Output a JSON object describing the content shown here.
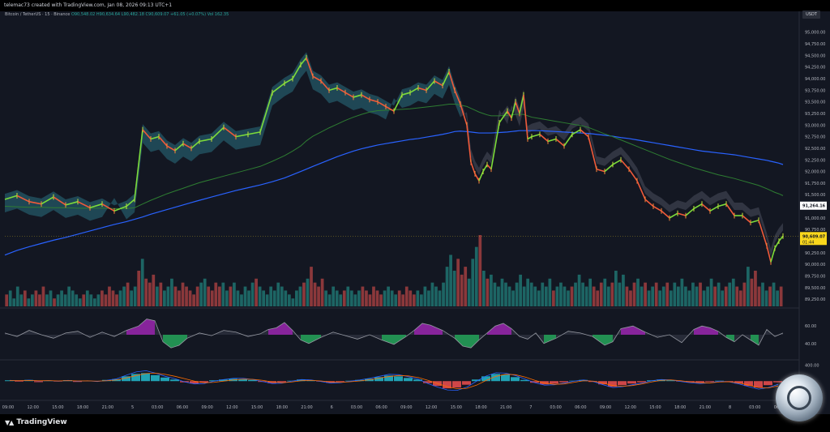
{
  "header": {
    "credit": "telemac73 created with TradingView.com, Jan 08, 2026 09:13 UTC+1"
  },
  "legend": {
    "symbol": "Bitcoin / TetherUS · 15 · Binance",
    "ohlc": "O90,548.02 H90,634.64 L90,482.18 C90,609.07 +61.05 (+0.07%)",
    "vol": "Vol 162.35"
  },
  "unit": "USDT",
  "branding": "TradingView",
  "colors": {
    "background": "#131722",
    "bull": "#26a69a",
    "bear": "#ef5350",
    "ma_slow": "#2962ff",
    "ma_mid": "#2e7d32",
    "cloud_up": "#2a6f80",
    "cloud_down": "#4a4e5c",
    "price_badge": "#f9d71c"
  },
  "chart_data": [
    {
      "type": "line",
      "panel": "price",
      "y_ticks": [
        "95,000.00",
        "94,750.00",
        "94,500.00",
        "94,250.00",
        "94,000.00",
        "93,750.00",
        "93,500.00",
        "93,250.00",
        "93,000.00",
        "92,750.00",
        "92,500.00",
        "92,250.00",
        "92,000.00",
        "91,750.00",
        "91,500.00",
        "91,250.00",
        "91,000.00",
        "90,750.00",
        "90,500.00",
        "90,250.00",
        "90,000.00",
        "89,750.00",
        "89,500.00",
        "89,250.00"
      ],
      "ylim": [
        89200,
        95100
      ],
      "x_ticks": [
        "09:00",
        "12:00",
        "15:00",
        "18:00",
        "21:00",
        "5",
        "03:00",
        "06:00",
        "09:00",
        "12:00",
        "15:00",
        "18:00",
        "21:00",
        "6",
        "03:00",
        "06:00",
        "09:00",
        "12:00",
        "15:00",
        "18:00",
        "21:00",
        "7",
        "03:00",
        "06:00",
        "09:00",
        "12:00",
        "15:00",
        "18:00",
        "21:00",
        "8",
        "03:00",
        "06:00"
      ],
      "price_labels": {
        "level": "91,264.16",
        "last": "90,609.07",
        "countdown": "01:44"
      },
      "price_x": [
        0,
        15,
        30,
        45,
        60,
        75,
        90,
        105,
        120,
        135,
        150,
        160,
        170,
        180,
        190,
        200,
        210,
        220,
        230,
        240,
        255,
        270,
        285,
        300,
        315,
        330,
        345,
        355,
        365,
        372,
        380,
        390,
        400,
        410,
        420,
        430,
        440,
        450,
        460,
        470,
        480,
        490,
        500,
        510,
        520,
        530,
        540,
        548,
        555,
        562,
        570,
        575,
        580,
        585,
        590,
        595,
        600,
        610,
        620,
        625,
        630,
        635,
        640,
        645,
        650,
        660,
        670,
        680,
        690,
        700,
        710,
        720,
        730,
        740,
        750,
        760,
        770,
        780,
        790,
        800,
        810,
        820,
        830,
        840,
        850,
        860,
        870,
        880,
        890,
        900,
        910,
        920,
        930,
        940,
        945,
        950,
        955,
        960
      ],
      "price_y": [
        91400,
        91480,
        91350,
        91300,
        91450,
        91280,
        91350,
        91220,
        91300,
        91150,
        91250,
        91400,
        92900,
        92700,
        92750,
        92550,
        92450,
        92600,
        92500,
        92650,
        92700,
        92950,
        92750,
        92800,
        92850,
        93700,
        93900,
        94000,
        94300,
        94450,
        94050,
        93950,
        93750,
        93800,
        93700,
        93600,
        93650,
        93550,
        93500,
        93400,
        93300,
        93650,
        93700,
        93800,
        93750,
        93950,
        93850,
        94150,
        93750,
        93450,
        93000,
        92200,
        91950,
        91800,
        92000,
        92150,
        92050,
        93050,
        93300,
        93150,
        93500,
        93250,
        93650,
        92700,
        92750,
        92800,
        92650,
        92700,
        92550,
        92800,
        92900,
        92750,
        92050,
        92000,
        92150,
        92250,
        92050,
        91800,
        91400,
        91250,
        91150,
        91000,
        91100,
        91050,
        91200,
        91300,
        91150,
        91250,
        91300,
        91050,
        91050,
        90900,
        90950,
        90400,
        90050,
        90350,
        90500,
        90609
      ],
      "ma_slow_y": [
        90200,
        90300,
        90380,
        90450,
        90520,
        90580,
        90650,
        90720,
        90790,
        90860,
        90920,
        90970,
        91020,
        91080,
        91130,
        91180,
        91230,
        91280,
        91330,
        91380,
        91450,
        91520,
        91590,
        91650,
        91710,
        91780,
        91860,
        91930,
        92000,
        92050,
        92110,
        92180,
        92250,
        92320,
        92380,
        92440,
        92490,
        92530,
        92570,
        92600,
        92630,
        92660,
        92690,
        92710,
        92740,
        92770,
        92800,
        92830,
        92860,
        92870,
        92860,
        92850,
        92840,
        92830,
        92830,
        92830,
        92830,
        92840,
        92850,
        92860,
        92870,
        92880,
        92880,
        92880,
        92880,
        92880,
        92870,
        92860,
        92850,
        92840,
        92830,
        92820,
        92800,
        92780,
        92760,
        92730,
        92710,
        92680,
        92650,
        92620,
        92590,
        92560,
        92530,
        92500,
        92470,
        92440,
        92420,
        92400,
        92380,
        92360,
        92330,
        92300,
        92270,
        92240,
        92220,
        92200,
        92180,
        92150
      ],
      "ma_mid_y": [
        91250,
        91240,
        91230,
        91230,
        91220,
        91220,
        91210,
        91210,
        91210,
        91200,
        91200,
        91220,
        91300,
        91380,
        91450,
        91520,
        91580,
        91640,
        91700,
        91760,
        91830,
        91900,
        91970,
        92040,
        92110,
        92220,
        92340,
        92440,
        92550,
        92660,
        92760,
        92850,
        92940,
        93020,
        93100,
        93170,
        93230,
        93280,
        93310,
        93320,
        93330,
        93340,
        93350,
        93370,
        93390,
        93410,
        93430,
        93450,
        93450,
        93430,
        93400,
        93360,
        93320,
        93280,
        93250,
        93220,
        93200,
        93200,
        93210,
        93220,
        93230,
        93230,
        93230,
        93200,
        93170,
        93140,
        93110,
        93080,
        93050,
        93020,
        92990,
        92950,
        92880,
        92810,
        92750,
        92680,
        92610,
        92540,
        92470,
        92400,
        92330,
        92260,
        92200,
        92140,
        92080,
        92030,
        91980,
        91930,
        91890,
        91850,
        91800,
        91750,
        91700,
        91630,
        91590,
        91550,
        91520,
        91480
      ]
    },
    {
      "type": "bar",
      "panel": "volume",
      "series": [
        {
          "values": [
            3,
            4,
            2,
            5,
            3,
            4,
            2,
            3,
            4,
            3,
            5,
            3,
            4,
            2,
            3,
            4,
            3,
            5,
            4,
            3,
            2,
            3,
            4,
            3,
            2,
            3,
            4,
            3,
            5,
            4,
            3,
            4,
            5,
            6,
            4,
            5,
            9,
            12,
            7,
            6,
            8,
            5,
            6,
            4,
            5,
            7,
            5,
            4,
            6,
            5,
            4,
            3,
            5,
            6,
            7,
            5,
            4,
            6,
            5,
            6,
            4,
            5,
            6,
            4,
            3,
            5,
            4,
            6,
            7,
            5,
            4,
            3,
            5,
            4,
            6,
            5,
            4,
            3,
            2,
            4,
            5,
            6,
            7,
            10,
            6,
            5,
            7,
            4,
            3,
            5,
            4,
            3,
            4,
            5,
            4,
            3,
            4,
            5,
            4,
            3,
            5,
            4,
            3,
            4,
            5,
            4,
            3,
            4,
            3,
            5,
            4,
            3,
            4,
            3,
            5,
            4,
            6,
            5,
            4,
            6,
            10,
            13,
            9,
            12,
            8,
            10,
            7,
            12,
            15,
            18,
            9,
            7,
            8,
            6,
            5,
            7,
            6,
            5,
            4,
            6,
            8,
            5,
            7,
            6,
            5,
            4,
            6,
            5,
            7,
            4,
            5,
            6,
            5,
            4,
            5,
            6,
            8,
            6,
            5,
            7,
            5,
            4,
            6,
            7,
            5,
            6,
            9,
            6,
            8,
            5,
            4,
            6,
            7,
            5,
            6,
            4,
            5,
            6,
            4,
            5,
            6,
            4,
            6,
            5,
            7,
            5,
            4,
            6,
            5,
            6,
            4,
            5,
            7,
            5,
            6,
            4,
            5,
            6,
            7,
            5,
            4,
            6,
            10,
            7,
            9,
            5,
            6,
            4,
            5,
            6,
            4,
            5
          ]
        }
      ]
    },
    {
      "type": "area",
      "panel": "oscillator",
      "y_ticks": [
        "60.00",
        "40.00"
      ],
      "ylim": [
        25,
        75
      ],
      "x": [
        0,
        15,
        30,
        45,
        60,
        75,
        90,
        105,
        120,
        135,
        150,
        165,
        175,
        185,
        195,
        205,
        215,
        225,
        240,
        255,
        270,
        285,
        300,
        315,
        325,
        335,
        345,
        355,
        365,
        375,
        390,
        405,
        420,
        435,
        450,
        465,
        480,
        495,
        505,
        515,
        525,
        540,
        555,
        565,
        575,
        585,
        595,
        605,
        615,
        625,
        635,
        645,
        655,
        665,
        680,
        695,
        710,
        725,
        740,
        750,
        760,
        775,
        790,
        805,
        820,
        835,
        850,
        860,
        870,
        880,
        890,
        900,
        910,
        920,
        930,
        940,
        950,
        960
      ],
      "values": [
        52,
        48,
        55,
        50,
        46,
        52,
        54,
        47,
        53,
        48,
        55,
        60,
        68,
        66,
        42,
        35,
        38,
        46,
        52,
        49,
        55,
        53,
        48,
        51,
        56,
        58,
        64,
        55,
        44,
        40,
        47,
        53,
        49,
        45,
        50,
        44,
        39,
        48,
        55,
        63,
        61,
        55,
        46,
        37,
        35,
        44,
        52,
        60,
        63,
        57,
        48,
        45,
        52,
        40,
        46,
        54,
        52,
        48,
        38,
        42,
        57,
        60,
        53,
        47,
        50,
        41,
        56,
        60,
        58,
        54,
        47,
        42,
        50,
        44,
        38,
        56,
        48,
        52
      ]
    },
    {
      "type": "bar",
      "panel": "macd",
      "y_ticks": [
        "400.00"
      ],
      "ylim": [
        -400,
        450
      ],
      "series": [
        {
          "name": "histogram",
          "values": [
            20,
            -15,
            30,
            -25,
            15,
            -10,
            25,
            -20,
            10,
            -5,
            30,
            50,
            120,
            180,
            200,
            150,
            90,
            40,
            -30,
            -60,
            -40,
            20,
            40,
            60,
            50,
            30,
            -20,
            -50,
            -30,
            10,
            40,
            20,
            -10,
            -40,
            -20,
            10,
            30,
            60,
            100,
            140,
            120,
            80,
            40,
            -50,
            -120,
            -180,
            -160,
            -90,
            40,
            120,
            180,
            160,
            100,
            30,
            -40,
            -80,
            -60,
            -30,
            10,
            30,
            -20,
            -80,
            -140,
            -100,
            -60,
            -30,
            20,
            40,
            20,
            -10,
            -30,
            -40,
            -20,
            10,
            -20,
            -60,
            -120,
            -160,
            -100,
            -30
          ]
        },
        {
          "name": "macd",
          "values": [
            20,
            10,
            25,
            5,
            15,
            0,
            20,
            -5,
            10,
            -10,
            20,
            60,
            150,
            230,
            260,
            200,
            120,
            60,
            -20,
            -70,
            -60,
            0,
            40,
            70,
            70,
            40,
            -10,
            -60,
            -50,
            0,
            40,
            30,
            -10,
            -50,
            -40,
            0,
            30,
            70,
            120,
            170,
            160,
            110,
            50,
            -60,
            -150,
            -220,
            -230,
            -150,
            0,
            130,
            210,
            200,
            140,
            50,
            -40,
            -100,
            -90,
            -50,
            0,
            30,
            -10,
            -90,
            -160,
            -140,
            -90,
            -50,
            10,
            40,
            30,
            -10,
            -40,
            -60,
            -40,
            0,
            -20,
            -70,
            -140,
            -200,
            -160,
            -80
          ]
        },
        {
          "name": "signal",
          "values": [
            15,
            12,
            18,
            10,
            12,
            5,
            12,
            5,
            8,
            0,
            10,
            30,
            80,
            140,
            190,
            200,
            170,
            120,
            60,
            0,
            -40,
            -30,
            0,
            30,
            50,
            45,
            20,
            -20,
            -40,
            -20,
            10,
            20,
            5,
            -20,
            -30,
            -15,
            5,
            35,
            75,
            115,
            140,
            130,
            90,
            20,
            -60,
            -140,
            -190,
            -180,
            -100,
            20,
            120,
            170,
            160,
            100,
            20,
            -50,
            -80,
            -70,
            -30,
            10,
            0,
            -50,
            -110,
            -130,
            -110,
            -70,
            -20,
            20,
            30,
            10,
            -20,
            -40,
            -45,
            -20,
            -15,
            -45,
            -100,
            -160,
            -170,
            -120
          ]
        }
      ]
    }
  ]
}
